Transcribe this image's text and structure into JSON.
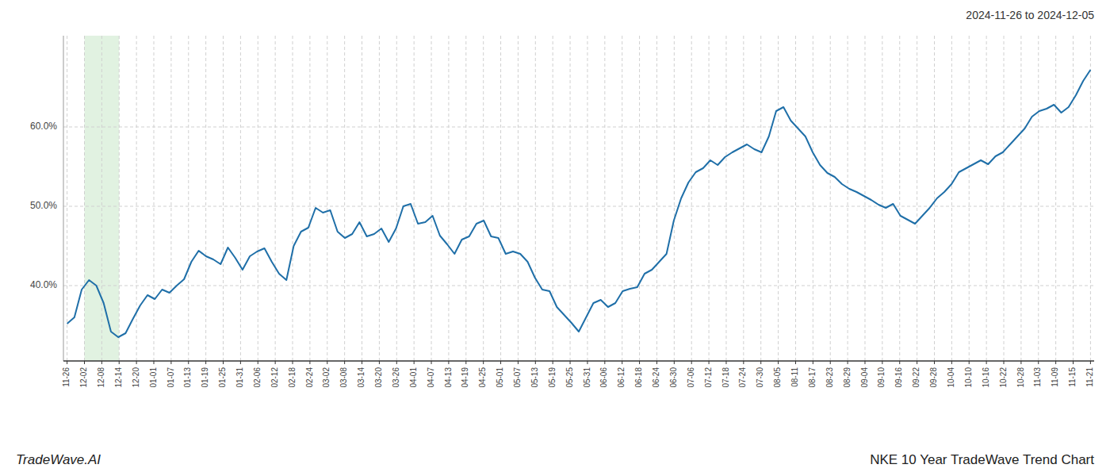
{
  "chart_data": {
    "type": "line",
    "title": "NKE 10 Year TradeWave Trend Chart",
    "subtitle": "2024-11-26 to 2024-12-05",
    "annotations": [
      "TradeWave.AI"
    ],
    "color": "#1f6fa8",
    "grid": true,
    "xlim": [
      -0.5,
      140.5
    ],
    "ylim": [
      0.305,
      0.715
    ],
    "yticks": [
      {
        "value": 0.4,
        "label": "40.0%"
      },
      {
        "value": 0.5,
        "label": "50.0%"
      },
      {
        "value": 0.6,
        "label": "60.0%"
      }
    ],
    "xticks": [
      {
        "value": 0,
        "label": "11-26"
      },
      {
        "value": 2.372881,
        "label": "12-02"
      },
      {
        "value": 4.745763,
        "label": "12-08"
      },
      {
        "value": 7.118644,
        "label": "12-14"
      },
      {
        "value": 9.491525,
        "label": "12-20"
      },
      {
        "value": 11.864407,
        "label": "01-01"
      },
      {
        "value": 14.237288,
        "label": "01-07"
      },
      {
        "value": 16.610169,
        "label": "01-13"
      },
      {
        "value": 18.983051,
        "label": "01-19"
      },
      {
        "value": 21.355932,
        "label": "01-25"
      },
      {
        "value": 23.728814,
        "label": "01-31"
      },
      {
        "value": 26.101695,
        "label": "02-06"
      },
      {
        "value": 28.474576,
        "label": "02-12"
      },
      {
        "value": 30.847458,
        "label": "02-18"
      },
      {
        "value": 33.220339,
        "label": "02-24"
      },
      {
        "value": 35.59322,
        "label": "03-02"
      },
      {
        "value": 37.966102,
        "label": "03-08"
      },
      {
        "value": 40.338983,
        "label": "03-14"
      },
      {
        "value": 42.711864,
        "label": "03-20"
      },
      {
        "value": 45.084746,
        "label": "03-26"
      },
      {
        "value": 47.457627,
        "label": "04-01"
      },
      {
        "value": 49.830508,
        "label": "04-07"
      },
      {
        "value": 52.20339,
        "label": "04-13"
      },
      {
        "value": 54.576271,
        "label": "04-19"
      },
      {
        "value": 56.949153,
        "label": "04-25"
      },
      {
        "value": 59.322034,
        "label": "05-01"
      },
      {
        "value": 61.694915,
        "label": "05-07"
      },
      {
        "value": 64.067797,
        "label": "05-13"
      },
      {
        "value": 66.440678,
        "label": "05-19"
      },
      {
        "value": 68.813559,
        "label": "05-25"
      },
      {
        "value": 71.186441,
        "label": "05-31"
      },
      {
        "value": 73.559322,
        "label": "06-06"
      },
      {
        "value": 75.932203,
        "label": "06-12"
      },
      {
        "value": 78.305085,
        "label": "06-18"
      },
      {
        "value": 80.677966,
        "label": "06-24"
      },
      {
        "value": 83.050847,
        "label": "06-30"
      },
      {
        "value": 85.423729,
        "label": "07-06"
      },
      {
        "value": 87.79661,
        "label": "07-12"
      },
      {
        "value": 90.169492,
        "label": "07-18"
      },
      {
        "value": 92.542373,
        "label": "07-24"
      },
      {
        "value": 94.915254,
        "label": "07-30"
      },
      {
        "value": 97.288136,
        "label": "08-05"
      },
      {
        "value": 99.661017,
        "label": "08-11"
      },
      {
        "value": 102.033898,
        "label": "08-17"
      },
      {
        "value": 104.40678,
        "label": "08-23"
      },
      {
        "value": 106.779661,
        "label": "08-29"
      },
      {
        "value": 109.152542,
        "label": "09-04"
      },
      {
        "value": 111.525424,
        "label": "09-10"
      },
      {
        "value": 113.898305,
        "label": "09-16"
      },
      {
        "value": 116.271186,
        "label": "09-22"
      },
      {
        "value": 118.644068,
        "label": "09-28"
      },
      {
        "value": 121.016949,
        "label": "10-04"
      },
      {
        "value": 123.389831,
        "label": "10-10"
      },
      {
        "value": 125.762712,
        "label": "10-16"
      },
      {
        "value": 128.135593,
        "label": "10-22"
      },
      {
        "value": 130.508475,
        "label": "10-28"
      },
      {
        "value": 132.881356,
        "label": "11-03"
      },
      {
        "value": 135.254237,
        "label": "11-09"
      },
      {
        "value": 137.627119,
        "label": "11-15"
      },
      {
        "value": 140,
        "label": "11-21"
      }
    ],
    "shaded_x_range": [
      2.372881,
      7.118644
    ],
    "x": [
      0,
      1,
      2,
      3,
      4,
      5,
      6,
      7,
      8,
      9,
      10,
      11,
      12,
      13,
      14,
      15,
      16,
      17,
      18,
      19,
      20,
      21,
      22,
      23,
      24,
      25,
      26,
      27,
      28,
      29,
      30,
      31,
      32,
      33,
      34,
      35,
      36,
      37,
      38,
      39,
      40,
      41,
      42,
      43,
      44,
      45,
      46,
      47,
      48,
      49,
      50,
      51,
      52,
      53,
      54,
      55,
      56,
      57,
      58,
      59,
      60,
      61,
      62,
      63,
      64,
      65,
      66,
      67,
      68,
      69,
      70,
      71,
      72,
      73,
      74,
      75,
      76,
      77,
      78,
      79,
      80,
      81,
      82,
      83,
      84,
      85,
      86,
      87,
      88,
      89,
      90,
      91,
      92,
      93,
      94,
      95,
      96,
      97,
      98,
      99,
      100,
      101,
      102,
      103,
      104,
      105,
      106,
      107,
      108,
      109,
      110,
      111,
      112,
      113,
      114,
      115,
      116,
      117,
      118,
      119,
      120,
      121,
      122,
      123,
      124,
      125,
      126,
      127,
      128,
      129,
      130,
      131,
      132,
      133,
      134,
      135,
      136,
      137,
      138,
      139,
      140
    ],
    "values": [
      0.352,
      0.36,
      0.395,
      0.407,
      0.4,
      0.378,
      0.342,
      0.335,
      0.34,
      0.358,
      0.375,
      0.388,
      0.383,
      0.395,
      0.391,
      0.4,
      0.408,
      0.43,
      0.444,
      0.437,
      0.433,
      0.427,
      0.448,
      0.435,
      0.42,
      0.437,
      0.443,
      0.447,
      0.43,
      0.415,
      0.407,
      0.45,
      0.468,
      0.473,
      0.498,
      0.492,
      0.495,
      0.468,
      0.46,
      0.465,
      0.48,
      0.462,
      0.465,
      0.472,
      0.455,
      0.472,
      0.5,
      0.503,
      0.478,
      0.48,
      0.488,
      0.463,
      0.452,
      0.44,
      0.458,
      0.462,
      0.478,
      0.482,
      0.462,
      0.46,
      0.44,
      0.443,
      0.44,
      0.43,
      0.41,
      0.395,
      0.393,
      0.373,
      0.363,
      0.353,
      0.342,
      0.36,
      0.378,
      0.382,
      0.373,
      0.378,
      0.393,
      0.396,
      0.398,
      0.415,
      0.42,
      0.43,
      0.44,
      0.482,
      0.51,
      0.53,
      0.543,
      0.548,
      0.558,
      0.552,
      0.562,
      0.568,
      0.573,
      0.578,
      0.572,
      0.568,
      0.588,
      0.62,
      0.625,
      0.608,
      0.598,
      0.588,
      0.568,
      0.552,
      0.542,
      0.537,
      0.528,
      0.522,
      0.518,
      0.513,
      0.508,
      0.502,
      0.498,
      0.503,
      0.488,
      0.483,
      0.478,
      0.488,
      0.498,
      0.51,
      0.518,
      0.528,
      0.543,
      0.548,
      0.553,
      0.558,
      0.553,
      0.563,
      0.568,
      0.578,
      0.588,
      0.598,
      0.613,
      0.62,
      0.623,
      0.628,
      0.618,
      0.625,
      0.64,
      0.658,
      0.672
    ]
  }
}
